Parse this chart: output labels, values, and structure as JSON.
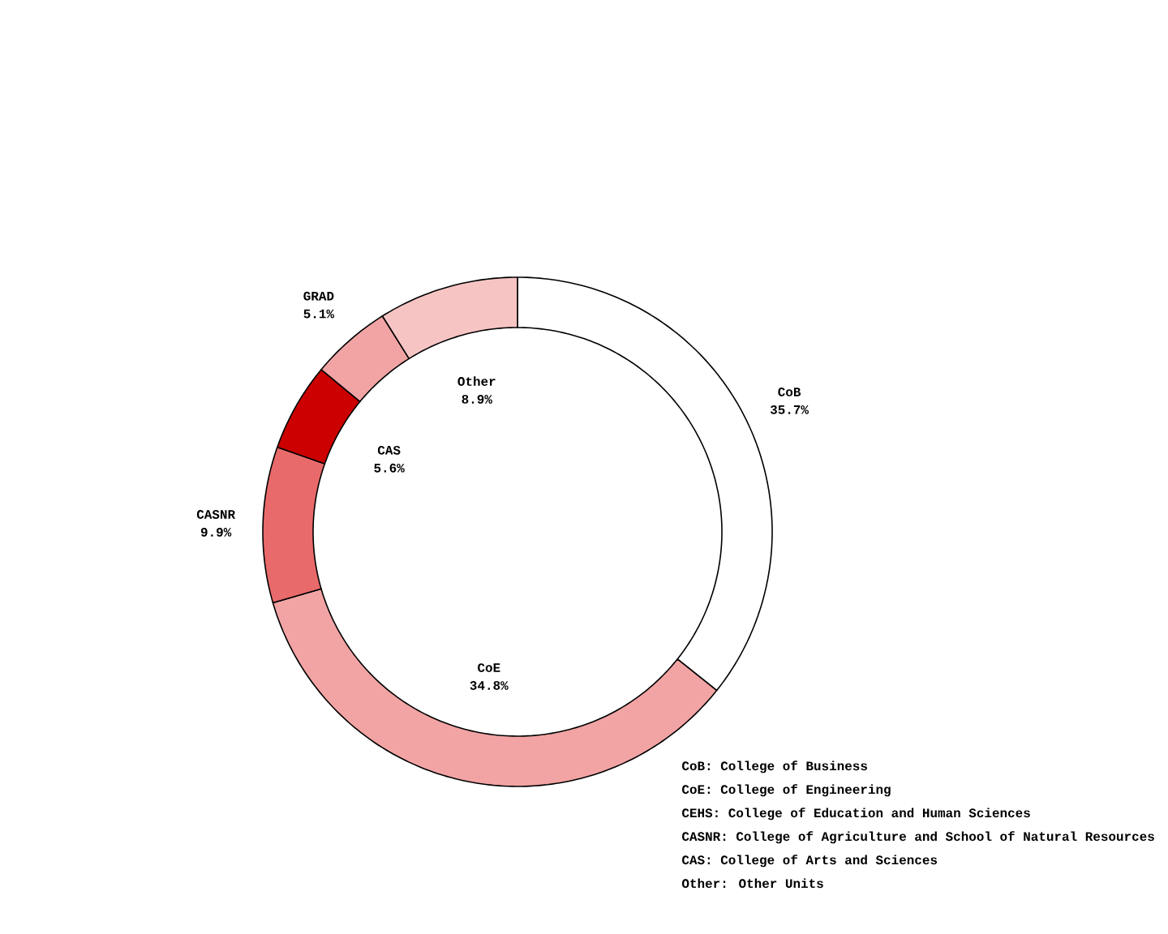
{
  "chart_data": {
    "type": "donut",
    "categories": [
      "CoB",
      "CoE",
      "CASNR",
      "CAS",
      "GRAD",
      "Other"
    ],
    "values": [
      35.7,
      34.8,
      9.9,
      5.6,
      5.1,
      8.9
    ],
    "value_labels": [
      "35.7%",
      "34.8%",
      "9.9%",
      "5.6%",
      "5.1%",
      "8.9%"
    ],
    "colors": [
      "#ffffff",
      "#f2a4a4",
      "#e86a6a",
      "#cc0000",
      "#f2a4a4",
      "#f7c4c4"
    ],
    "annotations": [
      "CoB: College of Business",
      "CoE: College of Engineering",
      "CEHS: College of Education and Human Sciences",
      "CASNR: College of Agriculture and School of Natural Resources",
      "CAS: College of Arts and Sciences",
      "Other: Other Units"
    ]
  }
}
